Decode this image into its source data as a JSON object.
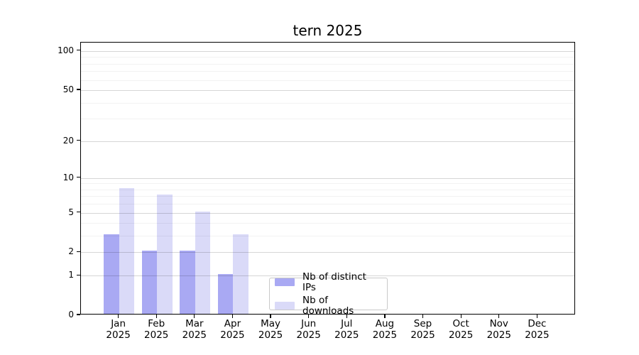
{
  "chart_data": {
    "type": "bar",
    "title": "tern 2025",
    "categories": [
      "Jan 2025",
      "Feb 2025",
      "Mar 2025",
      "Apr 2025",
      "May 2025",
      "Jun 2025",
      "Jul 2025",
      "Aug 2025",
      "Sep 2025",
      "Oct 2025",
      "Nov 2025",
      "Dec 2025"
    ],
    "series": [
      {
        "name": "Nb of distinct IPs",
        "color": "#a9a9f3",
        "values": [
          3,
          2,
          2,
          1,
          0,
          0,
          0,
          0,
          0,
          0,
          0,
          0
        ]
      },
      {
        "name": "Nb of downloads",
        "color": "#dadaf8",
        "values": [
          8,
          7,
          5,
          3,
          0,
          0,
          0,
          0,
          0,
          0,
          0,
          0
        ]
      }
    ],
    "xlabel": "",
    "ylabel": "",
    "yscale": "log1p",
    "ylim": [
      0,
      116
    ],
    "yticks": [
      0,
      1,
      2,
      5,
      10,
      20,
      50,
      100
    ],
    "yticks_minor": [
      3,
      4,
      6,
      7,
      8,
      9,
      30,
      40,
      60,
      70,
      80,
      90
    ],
    "grid": "horizontal major+minor, drawn over bars",
    "legend_position": "inside lower-center",
    "axis_color": "#000000",
    "major_grid_color": "#d6d6d6",
    "minor_grid_color": "#f2f2f2"
  }
}
